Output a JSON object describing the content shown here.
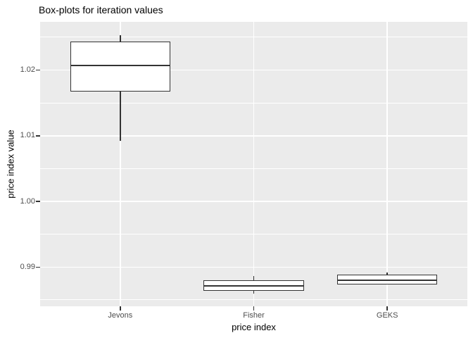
{
  "chart_data": {
    "type": "boxplot",
    "title": "Box-plots for iteration values",
    "xlabel": "price index",
    "ylabel": "price index value",
    "categories": [
      "Jevons",
      "Fisher",
      "GEKS"
    ],
    "yticks": [
      "0.99",
      "1.00",
      "1.01",
      "1.02"
    ],
    "ytick_values": [
      0.99,
      1.0,
      1.01,
      1.02
    ],
    "yminor_values": [
      0.985,
      0.995,
      1.005,
      1.015,
      1.025
    ],
    "ylim": [
      0.98403,
      1.02735
    ],
    "grid": "major-and-minor",
    "legend": "none",
    "series": [
      {
        "name": "Jevons",
        "min": 1.0092,
        "q1": 1.0167,
        "median": 1.0207,
        "q3": 1.0243,
        "max": 1.0253
      },
      {
        "name": "Fisher",
        "min": 0.986,
        "q1": 0.9864,
        "median": 0.9871,
        "q3": 0.988,
        "max": 0.9886
      },
      {
        "name": "GEKS",
        "min": 0.9873,
        "q1": 0.9873,
        "median": 0.988,
        "q3": 0.9889,
        "max": 0.9892
      }
    ],
    "colors": {
      "panel_background": "#EBEBEB",
      "gridline": "#FFFFFF",
      "box_border": "#333333",
      "box_fill": "#FFFFFF",
      "axis_text": "#4D4D4D",
      "tick_mark": "#333333",
      "title_text": "#000000"
    }
  }
}
